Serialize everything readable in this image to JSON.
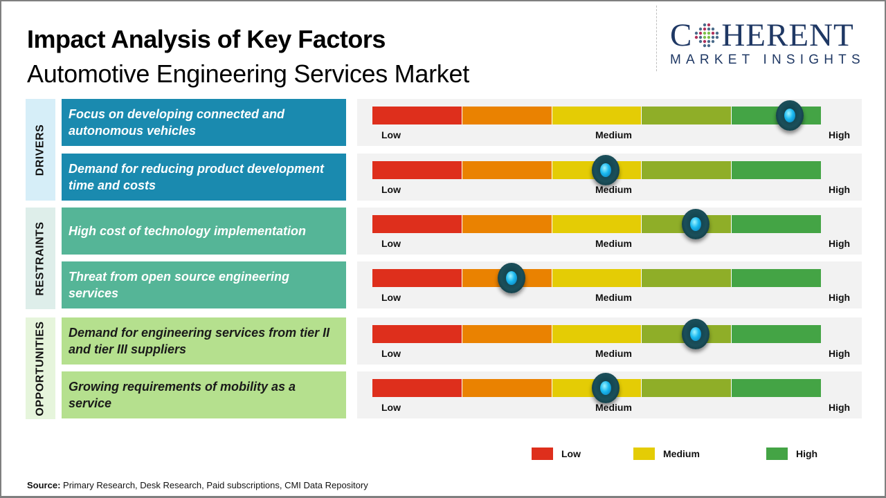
{
  "header": {
    "title": "Impact Analysis of Key Factors",
    "subtitle": "Automotive Engineering Services Market"
  },
  "logo": {
    "main_left": "C",
    "main_right": "HERENT",
    "sub": "MARKET INSIGHTS"
  },
  "colors": {
    "segments": [
      "#de2f1c",
      "#ea8201",
      "#e4cc05",
      "#8fae28",
      "#44a445"
    ],
    "drivers_bg": "#1a8aaf",
    "drivers_cat_bg": "#d6eef8",
    "restraints_bg": "#55b597",
    "restraints_cat_bg": "#deeeea",
    "opportunities_bg": "#b5e08e",
    "opportunities_cat_bg": "#e6f5dc",
    "legend_low": "#de2f1c",
    "legend_medium": "#e4cc05",
    "legend_high": "#44a445"
  },
  "chart_data": {
    "type": "table",
    "title": "Impact Analysis of Key Factors",
    "subtitle": "Automotive Engineering Services Market",
    "scale": {
      "min_label": "Low",
      "mid_label": "Medium",
      "max_label": "High",
      "segments": 5,
      "range": [
        0,
        1
      ]
    },
    "categories": [
      {
        "name": "DRIVERS",
        "factors": [
          {
            "label": "Focus on developing connected and autonomous vehicles",
            "impact": 0.93
          },
          {
            "label": "Demand for reducing product development time and costs",
            "impact": 0.52
          }
        ]
      },
      {
        "name": "RESTRAINTS",
        "factors": [
          {
            "label": "High cost of technology implementation",
            "impact": 0.72
          },
          {
            "label": "Threat from open source engineering services",
            "impact": 0.31
          }
        ]
      },
      {
        "name": "OPPORTUNITIES",
        "factors": [
          {
            "label": "Demand for engineering services from tier II and tier III suppliers",
            "impact": 0.72
          },
          {
            "label": "Growing requirements of mobility as a service",
            "impact": 0.52
          }
        ]
      }
    ],
    "legend": [
      {
        "label": "Low",
        "color": "#de2f1c"
      },
      {
        "label": "Medium",
        "color": "#e4cc05"
      },
      {
        "label": "High",
        "color": "#44a445"
      }
    ],
    "legend_position": "bottom-right"
  },
  "source": {
    "prefix": "Source:",
    "text": " Primary Research, Desk Research, Paid subscriptions, CMI Data Repository"
  }
}
